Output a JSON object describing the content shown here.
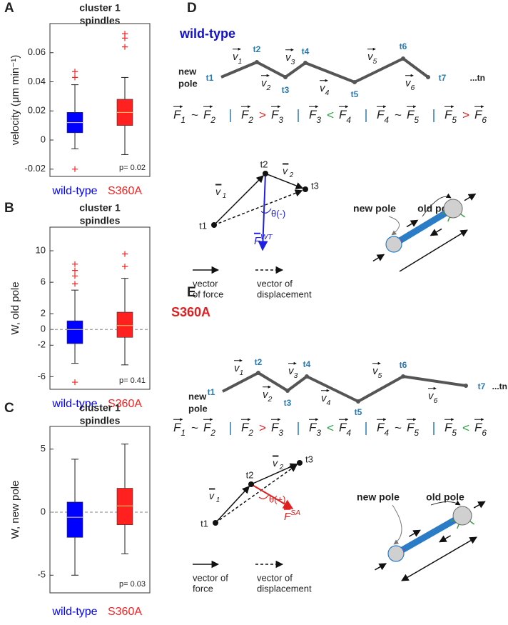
{
  "chart_data": [
    {
      "type": "box",
      "label": "A",
      "title": [
        "cluster 1",
        "spindles"
      ],
      "ylabel": "velocity (μm min⁻¹)",
      "categories": [
        "wild-type",
        "S360A"
      ],
      "colors": [
        "#0000ff",
        "#ff2020"
      ],
      "median_color": "#f0d060",
      "flier_color": "#ff2020",
      "boxes": [
        {
          "whislo": -0.006,
          "q1": 0.005,
          "med": 0.012,
          "q3": 0.019,
          "whishi": 0.038,
          "fliers": [
            0.043,
            0.047,
            -0.02
          ]
        },
        {
          "whislo": -0.01,
          "q1": 0.01,
          "med": 0.019,
          "q3": 0.028,
          "whishi": 0.043,
          "fliers": [
            0.064,
            0.07,
            0.073
          ]
        }
      ],
      "ylim": [
        -0.025,
        0.08
      ],
      "yticks": [
        -0.02,
        0,
        0.02,
        0.04,
        0.06
      ],
      "p_label": "p= 0.02"
    },
    {
      "type": "box",
      "label": "B",
      "title": [
        "cluster 1",
        "spindles"
      ],
      "ylabel": "W, old pole",
      "categories": [
        "wild-type",
        "S360A"
      ],
      "colors": [
        "#0000ff",
        "#ff2020"
      ],
      "median_color": "#f0d060",
      "flier_color": "#ff2020",
      "boxes": [
        {
          "whislo": -4.3,
          "q1": -1.8,
          "med": 0,
          "q3": 1.1,
          "whishi": 5,
          "fliers": [
            5.8,
            6.8,
            7.5,
            8.3,
            -6.7
          ]
        },
        {
          "whislo": -4.5,
          "q1": -1,
          "med": 0.5,
          "q3": 2.2,
          "whishi": 6.5,
          "fliers": [
            8,
            9.6
          ]
        }
      ],
      "ylim": [
        -7.6,
        13
      ],
      "yticks": [
        -6,
        -2,
        0,
        2,
        6,
        10
      ],
      "ref_line": 0,
      "p_label": "p= 0.41"
    },
    {
      "type": "box",
      "label": "C",
      "title": [
        "cluster 1",
        "spindles"
      ],
      "ylabel": "W, new pole",
      "categories": [
        "wild-type",
        "S360A"
      ],
      "colors": [
        "#0000ff",
        "#ff2020"
      ],
      "median_color": "#f0d060",
      "flier_color": "#ff2020",
      "boxes": [
        {
          "whislo": -5,
          "q1": -2,
          "med": -0.4,
          "q3": 0.8,
          "whishi": 4.2,
          "fliers": []
        },
        {
          "whislo": -3.3,
          "q1": -1,
          "med": 0.5,
          "q3": 1.9,
          "whishi": 5.4,
          "fliers": []
        }
      ],
      "ylim": [
        -6.4,
        6.8
      ],
      "yticks": [
        -5,
        0,
        5
      ],
      "ref_line": 0,
      "p_label": "p= 0.03"
    }
  ],
  "diagram_d": {
    "label": "D",
    "title": "wild-type",
    "title_color": "#1010d0",
    "pole_lines": [
      "new",
      "pole"
    ],
    "times": [
      "t1",
      "t2",
      "t3",
      "t4",
      "t5",
      "t6",
      "t7"
    ],
    "tail": "...tn",
    "vectors": [
      {
        "sym": "v",
        "sub": "1"
      },
      {
        "sym": "v",
        "sub": "2"
      },
      {
        "sym": "v",
        "sub": "3"
      },
      {
        "sym": "v",
        "sub": "4"
      },
      {
        "sym": "v",
        "sub": "5"
      },
      {
        "sym": "v",
        "sub": "6"
      }
    ],
    "relations": [
      {
        "left": {
          "sym": "F",
          "sub": "1"
        },
        "op": "~",
        "right": {
          "sym": "F",
          "sub": "2"
        }
      },
      {
        "left": {
          "sym": "F",
          "sub": "2"
        },
        "op": ">",
        "right": {
          "sym": "F",
          "sub": "3"
        }
      },
      {
        "left": {
          "sym": "F",
          "sub": "3"
        },
        "op": "<",
        "right": {
          "sym": "F",
          "sub": "4"
        }
      },
      {
        "left": {
          "sym": "F",
          "sub": "4"
        },
        "op": "~",
        "right": {
          "sym": "F",
          "sub": "5"
        }
      },
      {
        "left": {
          "sym": "F",
          "sub": "5"
        },
        "op": ">",
        "right": {
          "sym": "F",
          "sub": "6"
        }
      }
    ],
    "op_colors": {
      "~": "#222222",
      ">": "#e02020",
      "<": "#20a040"
    },
    "sketch_times": [
      "t1",
      "t2",
      "t3"
    ],
    "sketch_vectors": [
      {
        "sym": "v",
        "sub": " 1"
      },
      {
        "sym": "v",
        "sub": " 2"
      }
    ],
    "angle": "θ(-)",
    "force": {
      "sym": "F",
      "sup": "WT"
    },
    "force_color": "#2020e0",
    "legend_force": [
      "vector",
      "of force"
    ],
    "legend_disp": [
      "vector of",
      "displacement"
    ],
    "new_pole": "new pole",
    "old_pole": "old pole"
  },
  "diagram_e": {
    "label": "E",
    "title": "S360A",
    "title_color": "#e02020",
    "pole_lines": [
      "new",
      "pole"
    ],
    "times": [
      "t1",
      "t2",
      "t3",
      "t4",
      "t5",
      "t6",
      "t7"
    ],
    "tail": "...tn",
    "vectors": [
      {
        "sym": "v",
        "sub": "1"
      },
      {
        "sym": "v",
        "sub": "2"
      },
      {
        "sym": "v",
        "sub": "3"
      },
      {
        "sym": "v",
        "sub": "4"
      },
      {
        "sym": "v",
        "sub": "5"
      },
      {
        "sym": "v",
        "sub": "6"
      }
    ],
    "relations": [
      {
        "left": {
          "sym": "F",
          "sub": "1"
        },
        "op": "~",
        "right": {
          "sym": "F",
          "sub": "2"
        }
      },
      {
        "left": {
          "sym": "F",
          "sub": "2"
        },
        "op": ">",
        "right": {
          "sym": "F",
          "sub": "3"
        }
      },
      {
        "left": {
          "sym": "F",
          "sub": "3"
        },
        "op": "<",
        "right": {
          "sym": "F",
          "sub": "4"
        }
      },
      {
        "left": {
          "sym": "F",
          "sub": "4"
        },
        "op": "~",
        "right": {
          "sym": "F",
          "sub": "5"
        }
      },
      {
        "left": {
          "sym": "F",
          "sub": "5"
        },
        "op": "<",
        "right": {
          "sym": "F",
          "sub": "6"
        }
      }
    ],
    "op_colors": {
      "~": "#222222",
      ">": "#e02020",
      "<": "#20a040"
    },
    "sketch_times": [
      "t1",
      "t2",
      "t3"
    ],
    "sketch_vectors": [
      {
        "sym": "v",
        "sub": " 1"
      },
      {
        "sym": "v",
        "sub": " 2"
      }
    ],
    "angle": "θ(+)",
    "force": {
      "sym": "F",
      "sup": "SA"
    },
    "force_color": "#e02020",
    "legend_force": [
      "vector of",
      "force"
    ],
    "legend_disp": [
      "vector of",
      "displacement"
    ],
    "new_pole": "new pole",
    "old_pole": "old pole"
  }
}
